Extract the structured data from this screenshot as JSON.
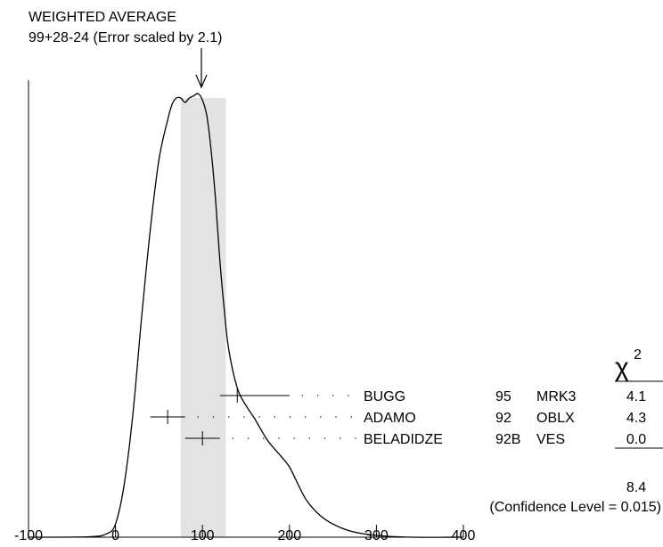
{
  "chart_data": {
    "type": "ideogram",
    "title_line1": "WEIGHTED AVERAGE",
    "title_line2": "99+28-24 (Error scaled by 2.1)",
    "weighted_average": {
      "value": 99,
      "err_plus": 28,
      "err_minus": 24
    },
    "shaded_band": [
      75,
      127
    ],
    "xlim": [
      -100,
      400
    ],
    "x_ticks": [
      -100,
      0,
      100,
      200,
      300,
      400
    ],
    "x_tick_labels": [
      "-100",
      "0",
      "100",
      "200",
      "300",
      "400"
    ],
    "ideogram_curve": [
      [
        -100,
        0
      ],
      [
        -30,
        0.001
      ],
      [
        -10,
        0.008
      ],
      [
        0,
        0.03
      ],
      [
        10,
        0.12
      ],
      [
        20,
        0.28
      ],
      [
        30,
        0.5
      ],
      [
        40,
        0.7
      ],
      [
        50,
        0.86
      ],
      [
        60,
        0.95
      ],
      [
        65,
        0.985
      ],
      [
        70,
        1.0
      ],
      [
        75,
        1.0
      ],
      [
        80,
        0.99
      ],
      [
        85,
        1.0
      ],
      [
        90,
        1.005
      ],
      [
        95,
        1.01
      ],
      [
        100,
        0.995
      ],
      [
        105,
        0.96
      ],
      [
        110,
        0.88
      ],
      [
        115,
        0.77
      ],
      [
        120,
        0.63
      ],
      [
        125,
        0.52
      ],
      [
        130,
        0.43
      ],
      [
        140,
        0.34
      ],
      [
        150,
        0.3
      ],
      [
        160,
        0.27
      ],
      [
        175,
        0.22
      ],
      [
        190,
        0.185
      ],
      [
        200,
        0.16
      ],
      [
        210,
        0.12
      ],
      [
        220,
        0.083
      ],
      [
        235,
        0.05
      ],
      [
        250,
        0.03
      ],
      [
        270,
        0.014
      ],
      [
        300,
        0.004
      ],
      [
        340,
        0.0
      ],
      [
        400,
        0.0
      ]
    ],
    "measurements": [
      {
        "author": "BUGG",
        "year": "95",
        "experiment": "MRK3",
        "value": 140,
        "lo": 120,
        "hi": 200,
        "chi2": "4.1"
      },
      {
        "author": "ADAMO",
        "year": "92",
        "experiment": "OBLX",
        "value": 60,
        "lo": 40,
        "hi": 80,
        "chi2": "4.3"
      },
      {
        "author": "BELADIDZE",
        "year": "92B",
        "experiment": "VES",
        "value": 100,
        "lo": 80,
        "hi": 120,
        "chi2": "0.0"
      }
    ],
    "chi2_header": "χ",
    "chi2_superscript": "2",
    "chi2_total": "8.4",
    "confidence_level": "(Confidence Level = 0.015)"
  }
}
